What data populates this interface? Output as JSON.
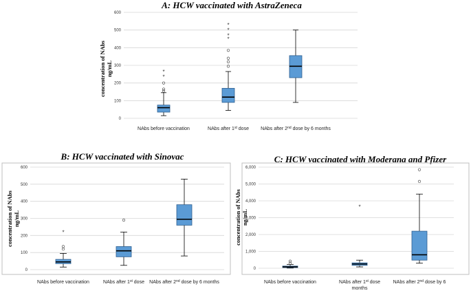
{
  "chart_data": [
    {
      "type": "boxplot",
      "title": "A: HCW vaccinated with AstraZeneca",
      "ylabel_line1": "concentration of NAbs",
      "ylabel_line2": "ng/mL",
      "ylim": [
        0,
        600
      ],
      "yticks": [
        "0",
        "100",
        "200",
        "300",
        "400",
        "500",
        "600"
      ],
      "categories": [
        {
          "pre": "NAbs before vaccination",
          "sup": "",
          "post": "",
          "line2": ""
        },
        {
          "pre": "NAbs after 1",
          "sup": "st",
          "post": " dose",
          "line2": ""
        },
        {
          "pre": "NAbs after 2",
          "sup": "nd",
          "post": " dose by 6 months",
          "line2": ""
        }
      ],
      "boxes": [
        {
          "min": 15,
          "q1": 35,
          "median": 60,
          "q3": 75,
          "max": 145,
          "outliers": [
            155,
            165,
            200
          ],
          "extremes": [
            235,
            265
          ]
        },
        {
          "min": 45,
          "q1": 90,
          "median": 120,
          "q3": 170,
          "max": 265,
          "outliers": [
            295,
            320,
            340,
            385
          ],
          "extremes": [
            450,
            470,
            500,
            530
          ]
        },
        {
          "min": 90,
          "q1": 230,
          "median": 295,
          "q3": 355,
          "max": 500,
          "outliers": [],
          "extremes": []
        }
      ]
    },
    {
      "type": "boxplot",
      "title": "B: HCW vaccinated with Sinovac",
      "ylabel_line1": "concentration of NAbs",
      "ylabel_line2": "ng/mL",
      "ylim": [
        0,
        600
      ],
      "yticks": [
        "0",
        "100",
        "200",
        "300",
        "400",
        "500",
        "600"
      ],
      "categories": [
        {
          "pre": "NAbs before vaccination",
          "sup": "",
          "post": "",
          "line2": ""
        },
        {
          "pre": "NAbs after 1",
          "sup": "st",
          "post": " dose",
          "line2": ""
        },
        {
          "pre": "NAbs after 2",
          "sup": "nd",
          "post": " dose by 6 months",
          "line2": ""
        }
      ],
      "boxes": [
        {
          "min": 15,
          "q1": 35,
          "median": 45,
          "q3": 60,
          "max": 95,
          "outliers": [
            120,
            135
          ],
          "extremes": [
            220
          ]
        },
        {
          "min": 25,
          "q1": 75,
          "median": 110,
          "q3": 135,
          "max": 220,
          "outliers": [
            290
          ],
          "extremes": []
        },
        {
          "min": 80,
          "q1": 260,
          "median": 295,
          "q3": 380,
          "max": 530,
          "outliers": [],
          "extremes": []
        }
      ]
    },
    {
      "type": "boxplot",
      "title": "C: HCW vaccinated with Moderana and Pfizer",
      "ylabel_line1": "concentration of NAbs",
      "ylabel_line2": "ng/mL",
      "ylim": [
        0,
        6000
      ],
      "yticks": [
        "0",
        "1,000",
        "2,000",
        "3,000",
        "4,000",
        "5,000",
        "6,000"
      ],
      "categories": [
        {
          "pre": "NAbs before vaccination",
          "sup": "",
          "post": "",
          "line2": ""
        },
        {
          "pre": "NAbs after 1",
          "sup": "st",
          "post": " dose",
          "line2": "months"
        },
        {
          "pre": "NAbs after 2",
          "sup": "nd",
          "post": " dose by 6",
          "line2": ""
        }
      ],
      "boxes": [
        {
          "min": 10,
          "q1": 40,
          "median": 80,
          "q3": 130,
          "max": 230,
          "outliers": [
            300,
            420
          ],
          "extremes": []
        },
        {
          "min": 80,
          "q1": 170,
          "median": 250,
          "q3": 320,
          "max": 480,
          "outliers": [],
          "extremes": [
            3650
          ]
        },
        {
          "min": 300,
          "q1": 480,
          "median": 800,
          "q3": 2200,
          "max": 4400,
          "outliers": [
            5150,
            5850
          ],
          "extremes": []
        }
      ]
    }
  ]
}
